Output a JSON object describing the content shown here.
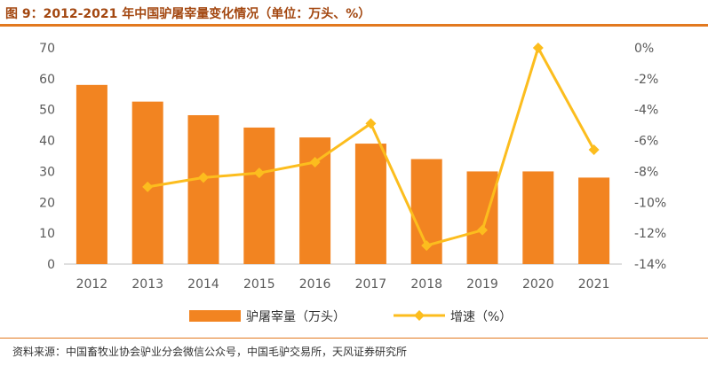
{
  "header": {
    "title": "图 9：2012-2021 年中国驴屠宰量变化情况（单位：万头、%）"
  },
  "footer": {
    "source": "资料来源：中国畜牧业协会驴业分会微信公众号，中国毛驴交易所，天风证券研究所"
  },
  "colors": {
    "bar": "#f28421",
    "line": "#fcbd1e",
    "accent": "#e2791f",
    "title": "#a34710",
    "axis": "#bfbfbf"
  },
  "chart_data": {
    "type": "bar",
    "title": "",
    "categories": [
      "2012",
      "2013",
      "2014",
      "2015",
      "2016",
      "2017",
      "2018",
      "2019",
      "2020",
      "2021"
    ],
    "series": [
      {
        "name": "驴屠宰量（万头）",
        "type": "bar",
        "axis": "left",
        "values": [
          58,
          52.6,
          48.2,
          44.2,
          41,
          39,
          34,
          30,
          30,
          28
        ]
      },
      {
        "name": "增速（%）",
        "type": "line",
        "axis": "right",
        "values": [
          null,
          -9.0,
          -8.4,
          -8.1,
          -7.4,
          -4.9,
          -12.8,
          -11.8,
          0.0,
          -6.6
        ]
      }
    ],
    "y_left": {
      "ylim": [
        0,
        70
      ],
      "ticks": [
        "0",
        "10",
        "20",
        "30",
        "40",
        "50",
        "60",
        "70"
      ]
    },
    "y_right": {
      "ylim": [
        -14,
        0
      ],
      "ticks": [
        "-14%",
        "-12%",
        "-10%",
        "-8%",
        "-6%",
        "-4%",
        "-2%",
        "0%"
      ]
    },
    "legend": {
      "position": "bottom"
    },
    "grid": false
  }
}
